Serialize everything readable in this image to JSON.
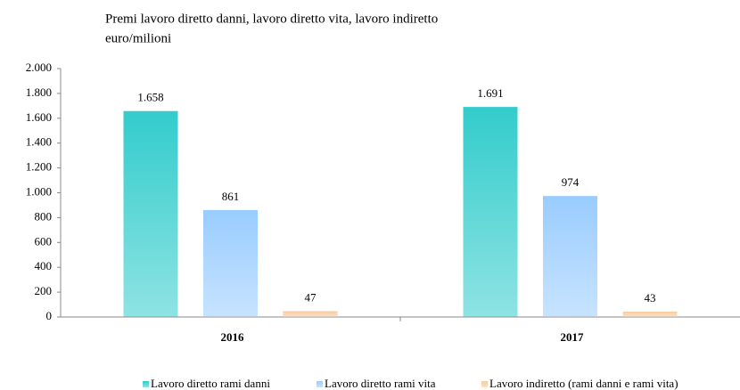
{
  "chart_data": {
    "type": "bar",
    "title": "Premi lavoro diretto danni, lavoro diretto vita, lavoro indiretto",
    "subtitle": "euro/milioni",
    "categories": [
      "2016",
      "2017"
    ],
    "series": [
      {
        "name": "Lavoro diretto rami danni",
        "color": "#33cccc",
        "values": [
          1658,
          1691
        ],
        "value_labels": [
          "1.658",
          "1.691"
        ]
      },
      {
        "name": "Lavoro diretto rami vita",
        "color": "#99ccff",
        "values": [
          861,
          974
        ]
      },
      {
        "name": "Lavoro indiretto (rami danni e rami vita)",
        "color": "#f8cba0",
        "values": [
          47,
          43
        ]
      }
    ],
    "ylim": [
      0,
      2000
    ],
    "yticks": [
      0,
      200,
      400,
      600,
      800,
      {
        "value": 1000,
        "label": "1.000"
      },
      {
        "value": 1200,
        "label": "1.200"
      },
      {
        "value": 1400,
        "label": "1.400"
      },
      {
        "value": 1600,
        "label": "1.600"
      },
      {
        "value": 1800,
        "label": "1.800"
      },
      {
        "value": 2000,
        "label": "2.000"
      }
    ],
    "legend": "bottom"
  }
}
